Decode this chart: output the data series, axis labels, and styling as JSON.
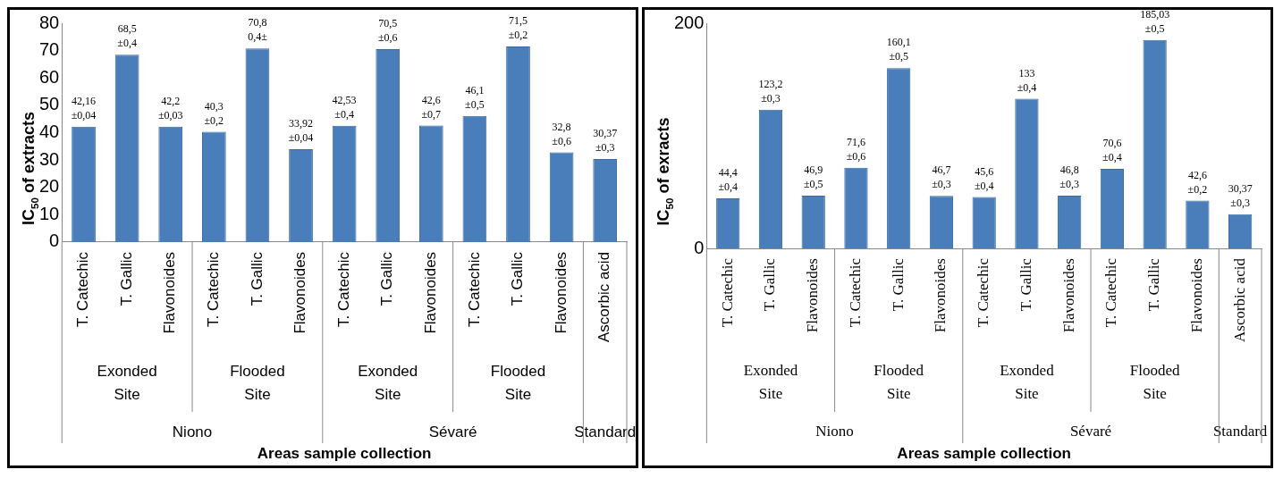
{
  "chart_data": [
    {
      "type": "bar",
      "ylabel": "IC$_{50}$ of extracts",
      "xlabel": "Areas sample collection",
      "categories": [
        "T. Catechic",
        "T. Gallic",
        "Flavonoides",
        "T. Catechic",
        "T. Gallic",
        "Flavonoides",
        "T. Catechic",
        "T. Gallic",
        "Flavonoides",
        "T. Catechic",
        "T. Gallic",
        "Flavonoides",
        "Ascorbic acid"
      ],
      "values": [
        42.16,
        68.5,
        42.2,
        40.3,
        70.8,
        33.92,
        42.53,
        70.5,
        42.6,
        46.1,
        71.5,
        32.8,
        30.37
      ],
      "value_labels": [
        "42,16 ±0,04",
        "68,5 ±0,4",
        "42,2 ±0,03",
        "40,3 ±0,2",
        "70,8 0,4±",
        "33,92 ±0,04",
        "42,53 ±0,4",
        "70,5 ±0,6",
        "42,6 ±0,7",
        "46,1 ±0,5",
        "71,5 ±0,2",
        "32,8 ±0,6",
        "30,37 ±0,3"
      ],
      "color": "#4a7ebb",
      "ylim": [
        0,
        80
      ],
      "yticks": [
        0,
        10,
        20,
        30,
        40,
        50,
        60,
        70,
        80
      ],
      "grid": false,
      "legend": false,
      "annotations": [
        "Exonded Site",
        "Flooded Site",
        "Exonded Site",
        "Flooded Site",
        "Niono",
        "Sévaré",
        "Standard"
      ]
    },
    {
      "type": "bar",
      "ylabel": "IC$_{50}$ of exracts",
      "xlabel": "Areas sample collection",
      "categories": [
        "T. Catechic",
        "T. Gallic",
        "Flavonoides",
        "T. Catechic",
        "T. Gallic",
        "Flavonoides",
        "T. Catechic",
        "T. Gallic",
        "Flavonoides",
        "T. Catechic",
        "T. Gallic",
        "Flavonoides",
        "Ascorbic acid"
      ],
      "values": [
        44.4,
        123.2,
        46.9,
        71.6,
        160.1,
        46.7,
        45.6,
        133,
        46.8,
        70.6,
        185.03,
        42.6,
        30.37
      ],
      "value_labels": [
        "44,4 ±0,4",
        "123,2 ±0,3",
        "46,9 ±0,5",
        "71,6 ±0,6",
        "160,1 ±0,5",
        "46,7 ±0,3",
        "45,6 ±0,4",
        "133 ±0,4",
        "46,8 ±0,3",
        "70,6 ±0,4",
        "185,03 ±0,5",
        "42,6 ±0,2",
        "30,37 ±0,3"
      ],
      "color": "#4a7ebb",
      "ylim": [
        0,
        200
      ],
      "yticks": [
        0,
        200
      ],
      "grid": false,
      "legend": false,
      "annotations": [
        "Exonded Site",
        "Flooded Site",
        "Exonded Site",
        "Flooded Site",
        "Niono",
        "Sévaré",
        "Standard"
      ]
    }
  ]
}
